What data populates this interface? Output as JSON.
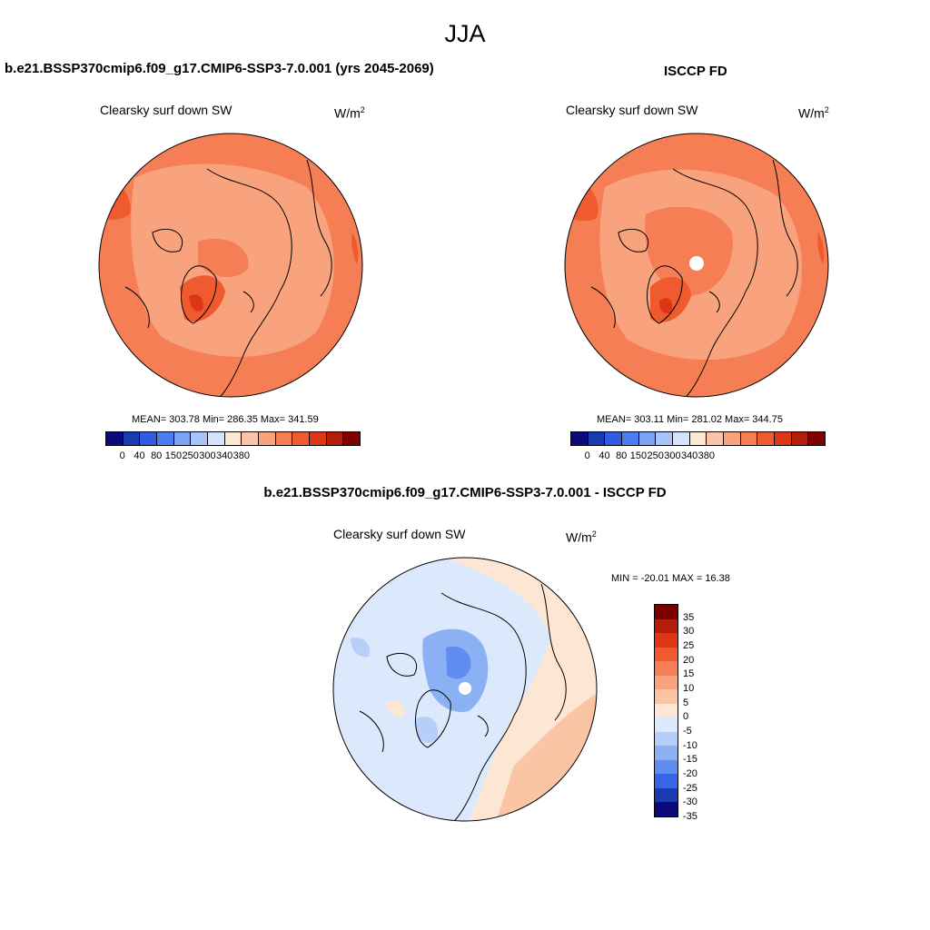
{
  "season": "JJA",
  "panels": [
    {
      "title": "b.e21.BSSP370cmip6.f09_g17.CMIP6-SSP3-7.0.001 (yrs 2045-2069)",
      "variable": "Clearsky surf down SW",
      "units": "W/m",
      "units_sup": "2",
      "stats": "MEAN= 303.78  Min= 286.35  Max= 341.59",
      "colorbar_labels": [
        "0",
        "40",
        "80",
        "150",
        "250",
        "300",
        "340",
        "380"
      ]
    },
    {
      "title": "ISCCP FD",
      "variable": "Clearsky surf down SW",
      "units": "W/m",
      "units_sup": "2",
      "stats": "MEAN= 303.11  Min= 281.02  Max= 344.75",
      "colorbar_labels": [
        "0",
        "40",
        "80",
        "150",
        "250",
        "300",
        "340",
        "380"
      ]
    }
  ],
  "diff_panel": {
    "title": "b.e21.BSSP370cmip6.f09_g17.CMIP6-SSP3-7.0.001 - ISCCP FD",
    "variable": "Clearsky surf down SW",
    "units": "W/m",
    "units_sup": "2",
    "stats": "MIN = -20.01 MAX =  16.38",
    "colorbar_labels": [
      "35",
      "30",
      "25",
      "20",
      "15",
      "10",
      "5",
      "0",
      "-5",
      "-10",
      "-15",
      "-20",
      "-25",
      "-30",
      "-35"
    ]
  },
  "colors": {
    "field_colorbar": [
      "#0a0a7a",
      "#1a3ab0",
      "#2e5be0",
      "#4a7ef0",
      "#7aa3f5",
      "#a9c4f7",
      "#d4e2fb",
      "#fde6d4",
      "#fbc4a4",
      "#f9a27e",
      "#f67e54",
      "#ef5a2e",
      "#dc3614",
      "#b31e0b",
      "#800000"
    ],
    "diff_colorbar": [
      "#7a0000",
      "#b31e0b",
      "#dc3614",
      "#ef5a2e",
      "#f67e54",
      "#f9a27e",
      "#fbc4a4",
      "#fde6d4",
      "#dce8fb",
      "#b7cff8",
      "#8cb0f4",
      "#5f8ef0",
      "#3466e6",
      "#1a3ab0",
      "#0a0a7a"
    ]
  }
}
